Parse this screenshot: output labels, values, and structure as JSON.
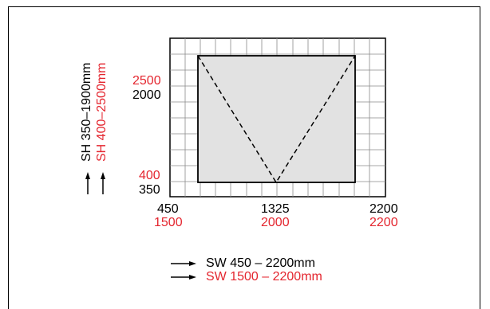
{
  "colors": {
    "standard": "#000000",
    "extended": "#e4262f",
    "panel_fill": "#e2e2e2",
    "grid_line": "#8a8a8a"
  },
  "vertical_axis": {
    "label_black": "SH 350–1900mm",
    "label_red": "SH 400–2500mm",
    "ticks": {
      "top_red": "2500",
      "top_black": "2000",
      "bottom_red": "400",
      "bottom_black": "350"
    }
  },
  "horizontal_axis": {
    "ticks_black": [
      "450",
      "1325",
      "2200"
    ],
    "ticks_red": [
      "1500",
      "2000",
      "2200"
    ]
  },
  "legend": {
    "black_label": "SW 450 – 2200mm",
    "red_label": "SW 1500 – 2200mm"
  },
  "icons": {
    "arrow": "arrow-icon"
  }
}
